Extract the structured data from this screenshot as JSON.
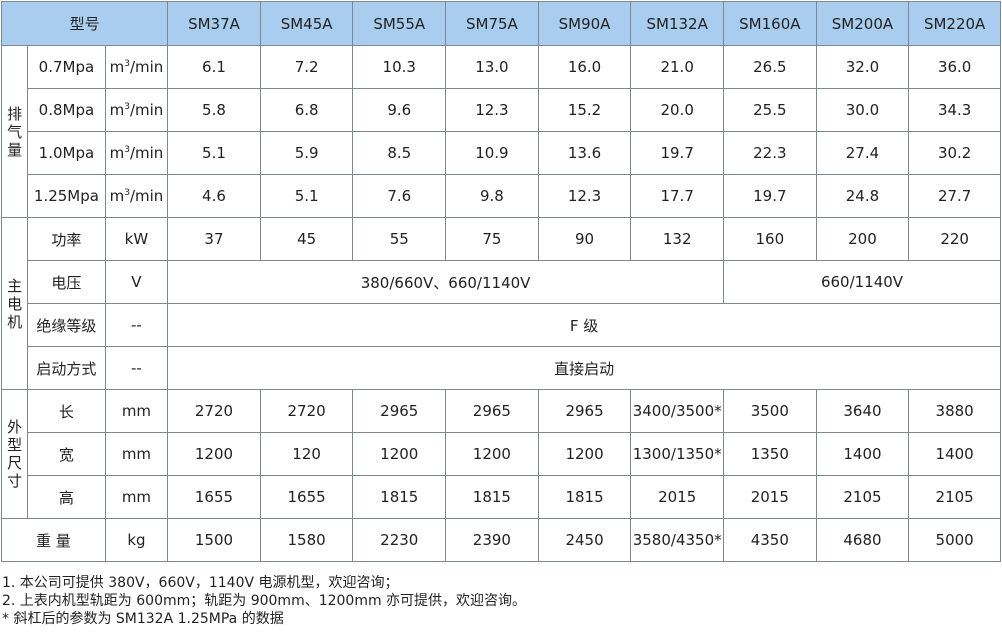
{
  "header": {
    "model_label": "型号",
    "models": [
      "SM37A",
      "SM45A",
      "SM55A",
      "SM75A",
      "SM90A",
      "SM132A",
      "SM160A",
      "SM200A",
      "SM220A"
    ]
  },
  "displacement": {
    "group_label": [
      "排",
      "气",
      "量"
    ],
    "unit_base": "m",
    "unit_sup": "3",
    "unit_rest": "/min",
    "rows": [
      {
        "pressure": "0.7Mpa",
        "values": [
          "6.1",
          "7.2",
          "10.3",
          "13.0",
          "16.0",
          "21.0",
          "26.5",
          "32.0",
          "36.0"
        ]
      },
      {
        "pressure": "0.8Mpa",
        "values": [
          "5.8",
          "6.8",
          "9.6",
          "12.3",
          "15.2",
          "20.0",
          "25.5",
          "30.0",
          "34.3"
        ]
      },
      {
        "pressure": "1.0Mpa",
        "values": [
          "5.1",
          "5.9",
          "8.5",
          "10.9",
          "13.6",
          "19.7",
          "22.3",
          "27.4",
          "30.2"
        ]
      },
      {
        "pressure": "1.25Mpa",
        "values": [
          "4.6",
          "5.1",
          "7.6",
          "9.8",
          "12.3",
          "17.7",
          "19.7",
          "24.8",
          "27.7"
        ]
      }
    ]
  },
  "motor": {
    "group_label": [
      "主",
      "电",
      "机"
    ],
    "power": {
      "label": "功率",
      "unit": "kW",
      "values": [
        "37",
        "45",
        "55",
        "75",
        "90",
        "132",
        "160",
        "200",
        "220"
      ]
    },
    "voltage": {
      "label": "电压",
      "unit": "V",
      "value_a": "380/660V、660/1140V",
      "value_b": "660/1140V"
    },
    "insulation": {
      "label": "绝缘等级",
      "unit": "--",
      "value": "F 级"
    },
    "start": {
      "label": "启动方式",
      "unit": "--",
      "value": "直接启动"
    }
  },
  "dimensions": {
    "group_label": [
      "外",
      "型",
      "尺",
      "寸"
    ],
    "rows": [
      {
        "label": "长",
        "unit": "mm",
        "values": [
          "2720",
          "2720",
          "2965",
          "2965",
          "2965",
          "3400/3500*",
          "3500",
          "3640",
          "3880"
        ]
      },
      {
        "label": "宽",
        "unit": "mm",
        "values": [
          "1200",
          "120",
          "1200",
          "1200",
          "1200",
          "1300/1350*",
          "1350",
          "1400",
          "1400"
        ]
      },
      {
        "label": "高",
        "unit": "mm",
        "values": [
          "1655",
          "1655",
          "1815",
          "1815",
          "1815",
          "2015",
          "2015",
          "2105",
          "2105"
        ]
      }
    ]
  },
  "weight": {
    "label": "重 量",
    "unit": "kg",
    "values": [
      "1500",
      "1580",
      "2230",
      "2390",
      "2450",
      "3580/4350*",
      "4350",
      "4680",
      "5000"
    ]
  },
  "notes": [
    "1. 本公司可提供 380V，660V，1140V 电源机型，欢迎咨询；",
    "2. 上表内机型轨距为 600mm；轨距为 900mm、1200mm 亦可提供，欢迎咨询。",
    "* 斜杠后的参数为 SM132A  1.25MPa 的数据"
  ]
}
